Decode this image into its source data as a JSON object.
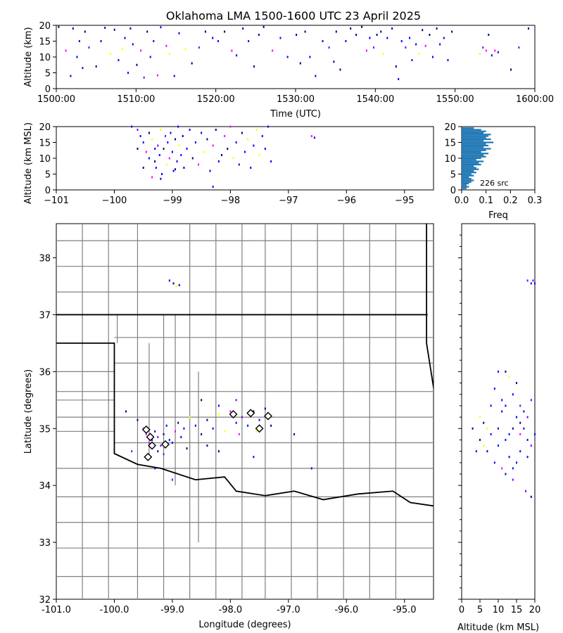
{
  "chart_data": [
    {
      "panel": "time-altitude",
      "type": "scatter",
      "title": "Oklahoma LMA 1500-1600 UTC 23 April 2025",
      "xlabel": "Time (UTC)",
      "ylabel": "Altitude (km)",
      "xlim_min": [
        0,
        60
      ],
      "ylim": [
        0,
        20
      ],
      "x_ticks": [
        "1500:00",
        "1510:00",
        "1520:00",
        "1530:00",
        "1540:00",
        "1550:00",
        "1600:00"
      ],
      "y_ticks": [
        "0",
        "5",
        "10",
        "15",
        "20"
      ],
      "points": [
        [
          0.3,
          19.5
        ],
        [
          1.2,
          12
        ],
        [
          1.8,
          4
        ],
        [
          2.1,
          19
        ],
        [
          2.6,
          10
        ],
        [
          2.9,
          15
        ],
        [
          3.3,
          6.5
        ],
        [
          3.6,
          18
        ],
        [
          4.1,
          13
        ],
        [
          5.0,
          7
        ],
        [
          5.6,
          15
        ],
        [
          6.1,
          19.2
        ],
        [
          6.8,
          11
        ],
        [
          7.3,
          18.6
        ],
        [
          7.8,
          9
        ],
        [
          8.3,
          12.5
        ],
        [
          8.6,
          16
        ],
        [
          9.0,
          5
        ],
        [
          9.3,
          19
        ],
        [
          9.6,
          14
        ],
        [
          10.1,
          7.5
        ],
        [
          10.6,
          12
        ],
        [
          11.0,
          3.5
        ],
        [
          11.4,
          18
        ],
        [
          11.8,
          10
        ],
        [
          12.2,
          15
        ],
        [
          12.7,
          4.2
        ],
        [
          13.1,
          19.4
        ],
        [
          13.8,
          13.5
        ],
        [
          14.2,
          11
        ],
        [
          14.8,
          4
        ],
        [
          15.4,
          17.5
        ],
        [
          16.2,
          12.5
        ],
        [
          17.0,
          8
        ],
        [
          17.9,
          13
        ],
        [
          18.7,
          18
        ],
        [
          19.6,
          16
        ],
        [
          20.3,
          15
        ],
        [
          21.1,
          18
        ],
        [
          22.0,
          12
        ],
        [
          22.6,
          10.5
        ],
        [
          23.4,
          19
        ],
        [
          24.1,
          15
        ],
        [
          24.8,
          7
        ],
        [
          25.4,
          17
        ],
        [
          26.0,
          19.5
        ],
        [
          27.1,
          12
        ],
        [
          28.1,
          16
        ],
        [
          29.0,
          10
        ],
        [
          30.1,
          17
        ],
        [
          30.6,
          8
        ],
        [
          31.2,
          18
        ],
        [
          31.8,
          10
        ],
        [
          32.5,
          4
        ],
        [
          33.4,
          15
        ],
        [
          34.2,
          13
        ],
        [
          34.8,
          8.5
        ],
        [
          35.1,
          18
        ],
        [
          35.6,
          6
        ],
        [
          36.3,
          15
        ],
        [
          36.9,
          19
        ],
        [
          37.6,
          17
        ],
        [
          38.3,
          19.5
        ],
        [
          38.9,
          12
        ],
        [
          39.3,
          16
        ],
        [
          39.8,
          13
        ],
        [
          40.2,
          17
        ],
        [
          40.7,
          18
        ],
        [
          41.0,
          11
        ],
        [
          41.5,
          16
        ],
        [
          42.1,
          19
        ],
        [
          42.6,
          7
        ],
        [
          42.9,
          3
        ],
        [
          43.3,
          15
        ],
        [
          43.8,
          13
        ],
        [
          44.3,
          16
        ],
        [
          44.6,
          9
        ],
        [
          45.1,
          14
        ],
        [
          45.5,
          11
        ],
        [
          45.9,
          18.5
        ],
        [
          46.3,
          13.5
        ],
        [
          46.8,
          17
        ],
        [
          47.2,
          10
        ],
        [
          47.7,
          19
        ],
        [
          48.1,
          14
        ],
        [
          48.6,
          16
        ],
        [
          49.1,
          9
        ],
        [
          49.6,
          18
        ],
        [
          53.1,
          11
        ],
        [
          53.5,
          13
        ],
        [
          53.9,
          12
        ],
        [
          54.2,
          17
        ],
        [
          54.6,
          10.5
        ],
        [
          55.0,
          12
        ],
        [
          55.4,
          11.5
        ],
        [
          57.0,
          6
        ],
        [
          58.0,
          13
        ],
        [
          59.2,
          19
        ]
      ]
    },
    {
      "panel": "lon-altitude",
      "type": "scatter",
      "xlabel": "",
      "ylabel": "Altitude (km MSL)",
      "xlim": [
        -101,
        -94.5
      ],
      "ylim": [
        0,
        20
      ],
      "x_ticks": [
        "−101",
        "−100",
        "−99",
        "−98",
        "−97",
        "−96",
        "−95"
      ],
      "y_ticks": [
        "0",
        "5",
        "10",
        "15",
        "20"
      ],
      "points": [
        [
          -99.7,
          20
        ],
        [
          -99.6,
          19
        ],
        [
          -99.55,
          17
        ],
        [
          -99.5,
          15
        ],
        [
          -99.45,
          12
        ],
        [
          -99.4,
          18
        ],
        [
          -99.35,
          16
        ],
        [
          -99.3,
          9
        ],
        [
          -99.28,
          7
        ],
        [
          -99.25,
          14
        ],
        [
          -99.22,
          11
        ],
        [
          -99.2,
          19
        ],
        [
          -99.18,
          5
        ],
        [
          -99.15,
          13
        ],
        [
          -99.12,
          17
        ],
        [
          -99.1,
          8
        ],
        [
          -99.08,
          15
        ],
        [
          -99.05,
          10
        ],
        [
          -99.03,
          18
        ],
        [
          -99.0,
          12
        ],
        [
          -98.98,
          6
        ],
        [
          -98.95,
          16
        ],
        [
          -98.92,
          9
        ],
        [
          -98.9,
          20
        ],
        [
          -98.88,
          14
        ],
        [
          -98.85,
          11
        ],
        [
          -98.82,
          17
        ],
        [
          -98.8,
          7
        ],
        [
          -98.75,
          13
        ],
        [
          -98.7,
          19
        ],
        [
          -98.65,
          10
        ],
        [
          -98.6,
          15
        ],
        [
          -98.55,
          8
        ],
        [
          -98.5,
          18
        ],
        [
          -98.45,
          12
        ],
        [
          -98.4,
          16
        ],
        [
          -98.35,
          6
        ],
        [
          -98.3,
          14
        ],
        [
          -98.25,
          19
        ],
        [
          -98.2,
          9
        ],
        [
          -98.15,
          11
        ],
        [
          -98.1,
          17
        ],
        [
          -98.05,
          13
        ],
        [
          -98.0,
          20
        ],
        [
          -97.95,
          10
        ],
        [
          -97.9,
          15
        ],
        [
          -97.85,
          8
        ],
        [
          -97.8,
          18
        ],
        [
          -97.75,
          12
        ],
        [
          -97.7,
          16
        ],
        [
          -97.65,
          7
        ],
        [
          -97.6,
          14
        ],
        [
          -97.55,
          19
        ],
        [
          -97.5,
          11
        ],
        [
          -97.45,
          17
        ],
        [
          -97.4,
          13
        ],
        [
          -97.35,
          20
        ],
        [
          -97.3,
          9
        ],
        [
          -96.6,
          17
        ],
        [
          -96.55,
          16.5
        ],
        [
          -99.6,
          13
        ],
        [
          -99.5,
          7
        ],
        [
          -99.4,
          10
        ],
        [
          -99.3,
          13
        ],
        [
          -98.3,
          1
        ],
        [
          -98.95,
          6.5
        ],
        [
          -99.2,
          3.5
        ],
        [
          -99.35,
          4
        ]
      ]
    },
    {
      "panel": "altitude-histogram",
      "type": "bar",
      "xlabel": "Freq",
      "xlim": [
        0,
        0.3
      ],
      "ylim": [
        0,
        20
      ],
      "x_ticks": [
        "0.0",
        "0.1",
        "0.2",
        "0.3"
      ],
      "y_ticks": [
        "0",
        "5",
        "10",
        "15",
        "20"
      ],
      "annotation": "226 src",
      "bins": [
        [
          0.5,
          0.02
        ],
        [
          1.0,
          0.03
        ],
        [
          1.5,
          0.02
        ],
        [
          2.0,
          0.03
        ],
        [
          2.5,
          0.04
        ],
        [
          3.0,
          0.05
        ],
        [
          3.5,
          0.04
        ],
        [
          4.0,
          0.03
        ],
        [
          4.5,
          0.05
        ],
        [
          5.0,
          0.04
        ],
        [
          5.5,
          0.06
        ],
        [
          6.0,
          0.05
        ],
        [
          6.5,
          0.07
        ],
        [
          7.0,
          0.06
        ],
        [
          7.5,
          0.05
        ],
        [
          8.0,
          0.08
        ],
        [
          8.5,
          0.07
        ],
        [
          9.0,
          0.09
        ],
        [
          9.5,
          0.06
        ],
        [
          10.0,
          0.08
        ],
        [
          10.5,
          0.1
        ],
        [
          11.0,
          0.09
        ],
        [
          11.5,
          0.11
        ],
        [
          12.0,
          0.08
        ],
        [
          12.5,
          0.1
        ],
        [
          13.0,
          0.12
        ],
        [
          13.5,
          0.09
        ],
        [
          14.0,
          0.11
        ],
        [
          14.5,
          0.1
        ],
        [
          15.0,
          0.13
        ],
        [
          15.5,
          0.09
        ],
        [
          16.0,
          0.12
        ],
        [
          16.5,
          0.1
        ],
        [
          17.0,
          0.11
        ],
        [
          17.5,
          0.12
        ],
        [
          18.0,
          0.09
        ],
        [
          18.5,
          0.1
        ],
        [
          19.0,
          0.08
        ],
        [
          19.5,
          0.05
        ]
      ]
    },
    {
      "panel": "plan-view",
      "type": "scatter",
      "xlabel": "Longitude (degrees)",
      "ylabel": "Latitude (degrees)",
      "xlim": [
        -101,
        -94.5
      ],
      "ylim": [
        32,
        38.6
      ],
      "x_ticks": [
        "-101.0",
        "-100.0",
        "-99.0",
        "-98.0",
        "-97.0",
        "-96.0",
        "-95.0"
      ],
      "y_ticks": [
        "32",
        "33",
        "34",
        "35",
        "36",
        "37",
        "38"
      ],
      "stations": [
        [
          -99.45,
          34.98
        ],
        [
          -99.38,
          34.85
        ],
        [
          -99.35,
          34.7
        ],
        [
          -99.42,
          34.5
        ],
        [
          -99.12,
          34.72
        ],
        [
          -97.95,
          35.25
        ],
        [
          -97.65,
          35.27
        ],
        [
          -97.35,
          35.22
        ],
        [
          -97.5,
          35.0
        ]
      ],
      "points": [
        [
          -99.8,
          35.3
        ],
        [
          -99.6,
          35.15
        ],
        [
          -99.5,
          35.0
        ],
        [
          -99.45,
          34.9
        ],
        [
          -99.4,
          34.75
        ],
        [
          -99.35,
          34.8
        ],
        [
          -99.3,
          34.95
        ],
        [
          -99.25,
          34.85
        ],
        [
          -99.2,
          34.7
        ],
        [
          -99.15,
          34.9
        ],
        [
          -99.1,
          35.05
        ],
        [
          -99.05,
          34.8
        ],
        [
          -99.0,
          34.75
        ],
        [
          -98.95,
          34.95
        ],
        [
          -98.9,
          35.1
        ],
        [
          -98.85,
          34.85
        ],
        [
          -98.8,
          35.0
        ],
        [
          -98.7,
          35.2
        ],
        [
          -98.6,
          35.05
        ],
        [
          -98.5,
          34.9
        ],
        [
          -98.4,
          35.15
        ],
        [
          -98.3,
          35.0
        ],
        [
          -98.2,
          35.25
        ],
        [
          -98.1,
          34.95
        ],
        [
          -98.0,
          35.3
        ],
        [
          -97.9,
          35.1
        ],
        [
          -97.85,
          34.9
        ],
        [
          -97.8,
          35.2
        ],
        [
          -97.7,
          35.05
        ],
        [
          -97.6,
          35.3
        ],
        [
          -97.55,
          34.95
        ],
        [
          -97.5,
          35.15
        ],
        [
          -97.4,
          35.35
        ],
        [
          -97.3,
          35.05
        ],
        [
          -98.5,
          35.5
        ],
        [
          -98.2,
          35.4
        ],
        [
          -97.9,
          35.5
        ],
        [
          -96.9,
          34.9
        ],
        [
          -96.6,
          34.3
        ],
        [
          -99.3,
          34.3
        ],
        [
          -99.0,
          34.1
        ],
        [
          -99.7,
          34.6
        ],
        [
          -99.05,
          37.6
        ],
        [
          -98.98,
          37.55
        ],
        [
          -98.93,
          37.5
        ],
        [
          -98.88,
          37.52
        ],
        [
          -98.2,
          34.6
        ],
        [
          -97.6,
          34.5
        ],
        [
          -98.4,
          34.7
        ],
        [
          -99.15,
          34.55
        ],
        [
          -99.25,
          34.6
        ],
        [
          -98.75,
          34.65
        ]
      ]
    },
    {
      "panel": "altitude-latitude",
      "type": "scatter",
      "xlabel": "Altitude (km MSL)",
      "xlim": [
        0,
        20
      ],
      "ylim": [
        32,
        38.6
      ],
      "x_ticks": [
        "0",
        "5",
        "10",
        "15",
        "20"
      ],
      "points": [
        [
          10,
          34.7
        ],
        [
          12,
          34.8
        ],
        [
          14,
          35.0
        ],
        [
          8,
          34.9
        ],
        [
          16,
          34.6
        ],
        [
          18,
          34.8
        ],
        [
          6,
          35.1
        ],
        [
          11,
          35.3
        ],
        [
          13,
          34.5
        ],
        [
          15,
          35.2
        ],
        [
          17,
          35.0
        ],
        [
          19,
          34.7
        ],
        [
          9,
          34.4
        ],
        [
          7,
          35.0
        ],
        [
          5,
          34.8
        ],
        [
          4,
          34.6
        ],
        [
          3,
          35.0
        ],
        [
          12,
          35.4
        ],
        [
          14,
          35.6
        ],
        [
          16,
          35.1
        ],
        [
          18,
          34.5
        ],
        [
          20,
          34.9
        ],
        [
          11,
          34.3
        ],
        [
          13,
          34.9
        ],
        [
          15,
          34.4
        ],
        [
          17,
          35.3
        ],
        [
          19,
          35.5
        ],
        [
          8,
          35.4
        ],
        [
          6,
          34.7
        ],
        [
          10,
          35.0
        ],
        [
          12,
          34.2
        ],
        [
          14,
          34.3
        ],
        [
          16,
          34.9
        ],
        [
          18,
          35.2
        ],
        [
          13,
          35.9
        ],
        [
          15,
          35.8
        ],
        [
          9,
          35.7
        ],
        [
          11,
          35.5
        ],
        [
          7,
          34.6
        ],
        [
          5,
          35.2
        ],
        [
          17.5,
          33.9
        ],
        [
          19,
          33.8
        ],
        [
          18,
          37.6
        ],
        [
          19,
          37.55
        ],
        [
          19.5,
          37.6
        ],
        [
          20,
          37.55
        ],
        [
          12,
          36.0
        ],
        [
          10,
          36.0
        ],
        [
          16,
          35.4
        ],
        [
          14,
          34.1
        ]
      ]
    }
  ],
  "colors": {
    "points": [
      "#00007f",
      "#0000ff",
      "#7f00ff",
      "#ff00ff",
      "#ffff00"
    ],
    "bars": "#1f77b4",
    "state_line": "#000000",
    "county_line": "#808080"
  }
}
